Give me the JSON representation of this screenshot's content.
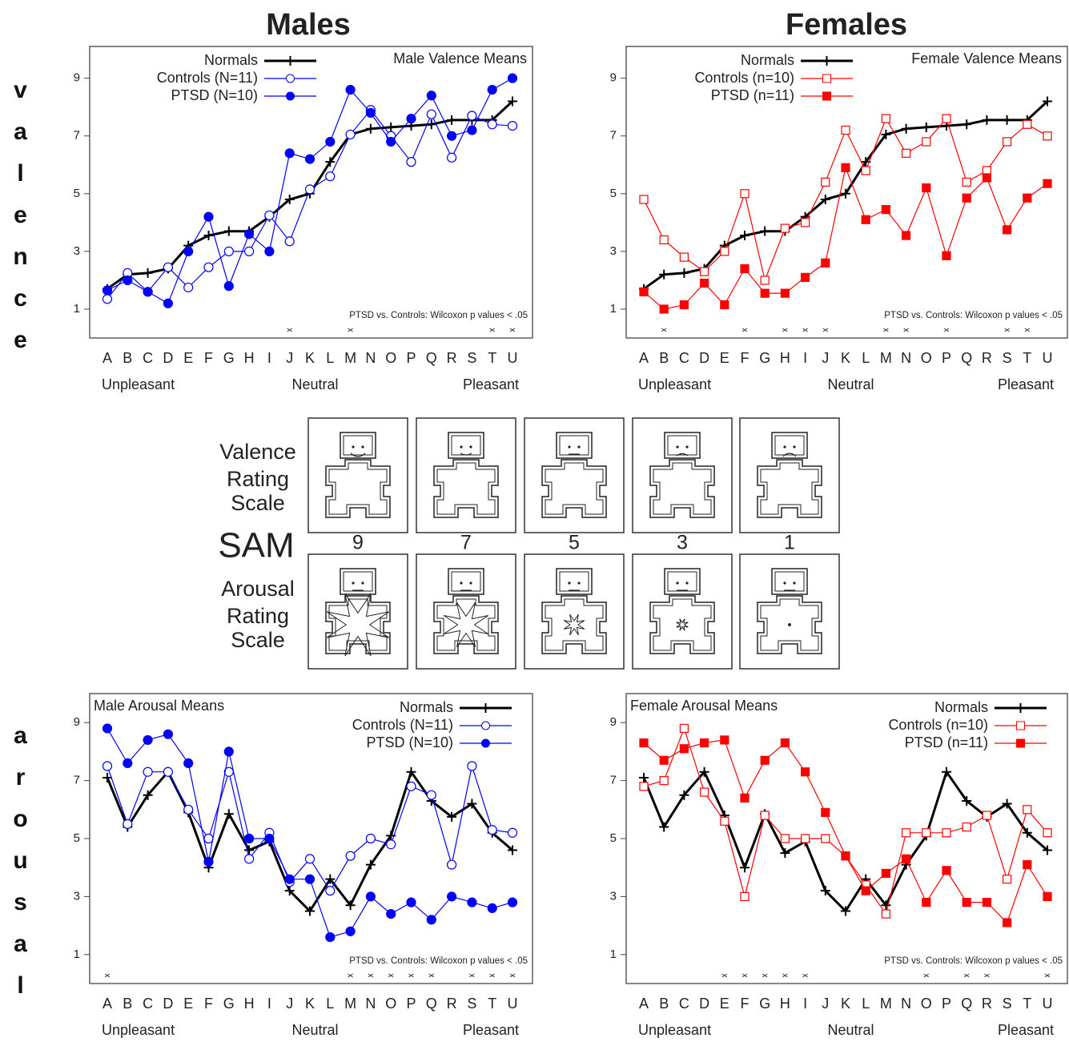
{
  "headings": {
    "males": "Males",
    "females": "Females"
  },
  "row_labels": {
    "valence": "valence",
    "arousal": "arousal"
  },
  "sam": {
    "valence_label": [
      "Valence",
      "Rating",
      "Scale"
    ],
    "title": "SAM",
    "arousal_label": [
      "Arousal",
      "Rating",
      "Scale"
    ],
    "scale": [
      9,
      7,
      5,
      3,
      1
    ]
  },
  "chart_data": [
    {
      "type": "line",
      "title": "Male Valence Means",
      "note": "PTSD vs. Controls: Wilcoxon p values < .05",
      "categories": [
        "A",
        "B",
        "C",
        "D",
        "E",
        "F",
        "G",
        "H",
        "I",
        "J",
        "K",
        "L",
        "M",
        "N",
        "O",
        "P",
        "Q",
        "R",
        "S",
        "T",
        "U"
      ],
      "category_groups": [
        "Unpleasant",
        "Neutral",
        "Pleasant"
      ],
      "ylim": [
        0,
        10.1
      ],
      "yticks": [
        1,
        3,
        5,
        7,
        9
      ],
      "legend": "upper left",
      "series": [
        {
          "name": "Normals",
          "color": "#000000",
          "marker": "plus",
          "values": [
            1.7,
            2.2,
            2.25,
            2.4,
            3.2,
            3.55,
            3.7,
            3.7,
            4.2,
            4.8,
            5.0,
            6.1,
            7.05,
            7.25,
            7.3,
            7.35,
            7.4,
            7.55,
            7.55,
            7.55,
            8.2
          ]
        },
        {
          "name": "Controls (N=11)",
          "color": "#0000ff",
          "marker": "open-circle",
          "values": [
            1.35,
            2.25,
            1.6,
            2.45,
            1.75,
            2.45,
            3.0,
            3.0,
            4.25,
            3.35,
            5.15,
            5.6,
            7.05,
            7.9,
            7.0,
            6.1,
            7.75,
            6.25,
            7.7,
            7.4,
            7.35
          ]
        },
        {
          "name": "PTSD (N=10)",
          "color": "#0000ff",
          "marker": "filled-circle",
          "values": [
            1.65,
            2.0,
            1.6,
            1.2,
            3.0,
            4.2,
            1.8,
            3.6,
            3.0,
            6.4,
            6.2,
            6.8,
            8.6,
            7.8,
            6.8,
            7.6,
            8.4,
            7.0,
            7.2,
            8.6,
            9.0
          ]
        }
      ],
      "significant": [
        false,
        false,
        false,
        false,
        false,
        false,
        false,
        false,
        false,
        true,
        false,
        false,
        true,
        false,
        false,
        false,
        false,
        false,
        false,
        true,
        true
      ]
    },
    {
      "type": "line",
      "title": "Female Valence Means",
      "note": "PTSD vs. Controls: Wilcoxon p values < .05",
      "categories": [
        "A",
        "B",
        "C",
        "D",
        "E",
        "F",
        "G",
        "H",
        "I",
        "J",
        "K",
        "L",
        "M",
        "N",
        "O",
        "P",
        "Q",
        "R",
        "S",
        "T",
        "U"
      ],
      "category_groups": [
        "Unpleasant",
        "Neutral",
        "Pleasant"
      ],
      "ylim": [
        0,
        10.1
      ],
      "yticks": [
        1,
        3,
        5,
        7,
        9
      ],
      "legend": "upper left",
      "series": [
        {
          "name": "Normals",
          "color": "#000000",
          "marker": "plus",
          "values": [
            1.7,
            2.2,
            2.25,
            2.4,
            3.2,
            3.55,
            3.7,
            3.7,
            4.2,
            4.8,
            5.0,
            6.1,
            7.05,
            7.25,
            7.3,
            7.35,
            7.4,
            7.55,
            7.55,
            7.55,
            8.2
          ]
        },
        {
          "name": "Controls (n=10)",
          "color": "#ff0000",
          "marker": "open-square",
          "values": [
            4.8,
            3.4,
            2.8,
            2.3,
            3.0,
            5.0,
            2.0,
            3.8,
            4.0,
            5.4,
            7.2,
            5.8,
            7.6,
            6.4,
            6.8,
            7.6,
            5.4,
            5.8,
            6.8,
            7.4,
            7.0
          ]
        },
        {
          "name": "PTSD (n=11)",
          "color": "#ff0000",
          "marker": "filled-square",
          "values": [
            1.6,
            1.0,
            1.15,
            1.9,
            1.15,
            2.4,
            1.55,
            1.55,
            2.1,
            2.6,
            5.9,
            4.1,
            4.45,
            3.55,
            5.2,
            2.85,
            4.85,
            5.55,
            3.75,
            4.85,
            5.35
          ]
        }
      ],
      "significant": [
        false,
        true,
        false,
        false,
        false,
        true,
        false,
        true,
        true,
        true,
        false,
        false,
        true,
        true,
        false,
        true,
        false,
        false,
        true,
        true,
        false
      ]
    },
    {
      "type": "line",
      "title": "Male Arousal Means",
      "note": "PTSD vs. Controls: Wilcoxon p values < .05",
      "categories": [
        "A",
        "B",
        "C",
        "D",
        "E",
        "F",
        "G",
        "H",
        "I",
        "J",
        "K",
        "L",
        "M",
        "N",
        "O",
        "P",
        "Q",
        "R",
        "S",
        "T",
        "U"
      ],
      "category_groups": [
        "Unpleasant",
        "Neutral",
        "Pleasant"
      ],
      "ylim": [
        0,
        10
      ],
      "yticks": [
        1,
        3,
        5,
        7,
        9
      ],
      "legend": "upper right",
      "series": [
        {
          "name": "Normals",
          "color": "#000000",
          "marker": "plus",
          "values": [
            7.1,
            5.4,
            6.5,
            7.3,
            5.9,
            4.0,
            5.85,
            4.6,
            4.9,
            3.2,
            2.5,
            3.6,
            2.7,
            4.1,
            5.1,
            7.3,
            6.3,
            5.75,
            6.2,
            5.2,
            4.6
          ]
        },
        {
          "name": "Controls (N=11)",
          "color": "#0000ff",
          "marker": "open-circle",
          "values": [
            7.5,
            5.5,
            7.3,
            7.3,
            6.0,
            5.0,
            7.3,
            4.3,
            5.2,
            3.5,
            4.3,
            3.2,
            4.4,
            5.0,
            4.8,
            6.8,
            6.5,
            4.1,
            7.5,
            5.3,
            5.2
          ]
        },
        {
          "name": "PTSD (N=10)",
          "color": "#0000ff",
          "marker": "filled-circle",
          "values": [
            8.8,
            7.6,
            8.4,
            8.6,
            7.6,
            4.2,
            8.0,
            5.0,
            5.0,
            3.6,
            3.6,
            1.6,
            1.8,
            3.0,
            2.4,
            2.8,
            2.2,
            3.0,
            2.8,
            2.6,
            2.8
          ]
        }
      ],
      "significant": [
        true,
        false,
        false,
        false,
        false,
        false,
        false,
        false,
        false,
        false,
        false,
        false,
        true,
        true,
        true,
        true,
        true,
        false,
        true,
        true,
        true
      ]
    },
    {
      "type": "line",
      "title": "Female Arousal Means",
      "note": "PTSD vs. Controls: Wilcoxon p values < .05",
      "categories": [
        "A",
        "B",
        "C",
        "D",
        "E",
        "F",
        "G",
        "H",
        "I",
        "J",
        "K",
        "L",
        "M",
        "N",
        "O",
        "P",
        "Q",
        "R",
        "S",
        "T",
        "U"
      ],
      "category_groups": [
        "Unpleasant",
        "Neutral",
        "Pleasant"
      ],
      "ylim": [
        0,
        10
      ],
      "yticks": [
        1,
        3,
        5,
        7,
        9
      ],
      "legend": "upper right",
      "series": [
        {
          "name": "Normals",
          "color": "#000000",
          "marker": "plus",
          "values": [
            7.1,
            5.4,
            6.5,
            7.3,
            5.8,
            4.0,
            5.85,
            4.5,
            4.9,
            3.2,
            2.5,
            3.6,
            2.7,
            4.1,
            5.1,
            7.3,
            6.3,
            5.75,
            6.2,
            5.2,
            4.6
          ]
        },
        {
          "name": "Controls (n=10)",
          "color": "#ff0000",
          "marker": "open-square",
          "values": [
            6.8,
            7.0,
            8.8,
            6.6,
            5.6,
            3.0,
            5.8,
            5.0,
            5.0,
            5.0,
            4.4,
            3.4,
            2.4,
            5.2,
            5.2,
            5.2,
            5.4,
            5.8,
            3.6,
            6.0,
            5.2
          ]
        },
        {
          "name": "PTSD (n=11)",
          "color": "#ff0000",
          "marker": "filled-square",
          "values": [
            8.3,
            7.7,
            8.1,
            8.3,
            8.4,
            6.4,
            7.7,
            8.3,
            7.3,
            5.9,
            4.4,
            3.2,
            3.8,
            4.3,
            2.8,
            3.9,
            2.8,
            2.8,
            2.1,
            4.1,
            3.0
          ]
        }
      ],
      "significant": [
        false,
        false,
        false,
        false,
        true,
        true,
        true,
        true,
        true,
        false,
        false,
        false,
        false,
        false,
        true,
        false,
        true,
        true,
        false,
        false,
        true
      ]
    }
  ]
}
